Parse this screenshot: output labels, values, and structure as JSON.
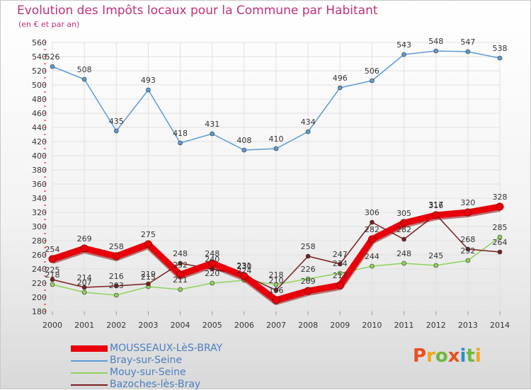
{
  "title": "Evolution des Impôts locaux pour la Commune par Habitant",
  "subtitle": "(en € et par an)",
  "logo": {
    "text": "Proxiti",
    "letters": [
      {
        "ch": "P",
        "color": "#e8501e"
      },
      {
        "ch": "r",
        "color": "#f2a51a"
      },
      {
        "ch": "o",
        "color": "#6fb83a"
      },
      {
        "ch": "x",
        "color": "#e8501e"
      },
      {
        "ch": "i",
        "color": "#2a8fd0"
      },
      {
        "ch": "t",
        "color": "#6fb83a"
      },
      {
        "ch": "i",
        "color": "#f2a51a"
      }
    ]
  },
  "chart_data": {
    "type": "line",
    "title": "Evolution des Impôts locaux pour la Commune par Habitant",
    "subtitle": "(en € et par an)",
    "xlabel": "",
    "ylabel": "",
    "categories": [
      "2000",
      "2001",
      "2002",
      "2003",
      "2004",
      "2005",
      "2006",
      "2007",
      "2008",
      "2009",
      "2010",
      "2011",
      "2012",
      "2013",
      "2014"
    ],
    "ylim": [
      180,
      560
    ],
    "yticks": [
      180,
      200,
      220,
      240,
      260,
      280,
      300,
      320,
      340,
      360,
      380,
      400,
      420,
      440,
      460,
      480,
      500,
      520,
      540,
      560
    ],
    "grid": true,
    "legend_position": "bottom-left",
    "series": [
      {
        "name": "MOUSSEAUX-LèS-BRAY",
        "color": "#e8000b",
        "emphasis": true,
        "values": [
          254,
          269,
          258,
          275,
          232,
          248,
          230,
          196,
          209,
          217,
          282,
          305,
          316,
          320,
          328
        ],
        "labels": [
          "254",
          "269",
          "258",
          "275",
          "232",
          "248",
          "230",
          "196",
          "209",
          "217",
          "282",
          "305",
          "316",
          "320",
          "328"
        ]
      },
      {
        "name": "Bray-sur-Seine",
        "color": "#5b9bd5",
        "values": [
          526,
          508,
          435,
          493,
          418,
          431,
          408,
          410,
          434,
          496,
          506,
          543,
          548,
          547,
          538
        ],
        "labels": [
          "526",
          "508",
          "435",
          "493",
          "418",
          "431",
          "408",
          "410",
          "434",
          "496",
          "506",
          "543",
          "548",
          "547",
          "538"
        ]
      },
      {
        "name": "Mouy-sur-Seine",
        "color": "#8ed35a",
        "values": [
          218,
          207,
          203,
          215,
          211,
          220,
          224,
          218,
          226,
          234,
          244,
          248,
          245,
          252,
          285
        ],
        "labels": [
          "218",
          "207",
          "203",
          "215",
          "211",
          "220",
          "224",
          "218",
          "226",
          "234",
          "244",
          "248",
          "245",
          "252",
          "285"
        ]
      },
      {
        "name": "Bazoches-lès-Bray",
        "color": "#7a1f1f",
        "values": [
          225,
          214,
          216,
          219,
          248,
          240,
          231,
          210,
          258,
          247,
          306,
          282,
          317,
          268,
          264
        ],
        "labels": [
          "225",
          "214",
          "216",
          "219",
          "248",
          "240",
          "231",
          "210",
          "258",
          "247",
          "306",
          "282",
          "317",
          "268",
          "264"
        ]
      }
    ]
  }
}
